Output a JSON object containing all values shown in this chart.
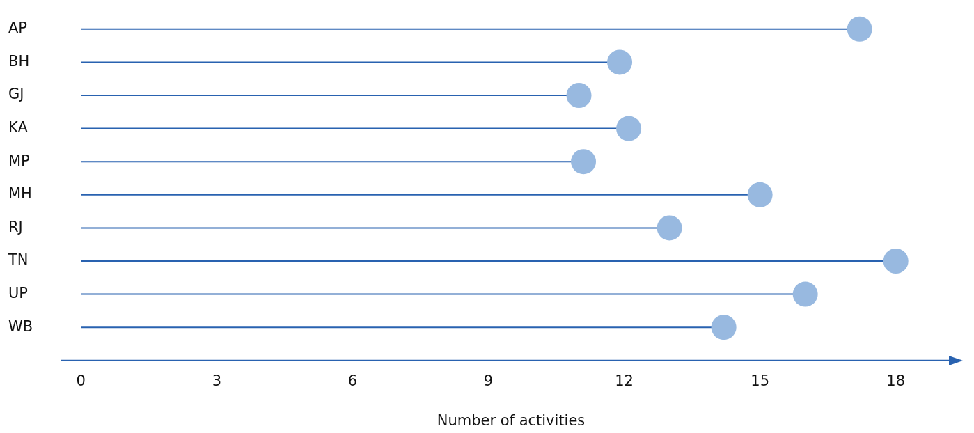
{
  "chart_data": {
    "type": "lollipop",
    "orientation": "horizontal",
    "categories": [
      "AP",
      "BH",
      "GJ",
      "KA",
      "MP",
      "MH",
      "RJ",
      "TN",
      "UP",
      "WB"
    ],
    "series": [
      {
        "color": "#98b9e0",
        "values": [
          17.2,
          11.9,
          11,
          12.1,
          11.1,
          15,
          13,
          18,
          16,
          14.2
        ]
      }
    ],
    "xlabel": "Number of activities",
    "xlim": [
      -0.45,
      19.45
    ],
    "xticks": [
      0,
      3,
      6,
      9,
      12,
      15,
      18
    ],
    "grid": false,
    "legend": false,
    "marker": "circle"
  }
}
